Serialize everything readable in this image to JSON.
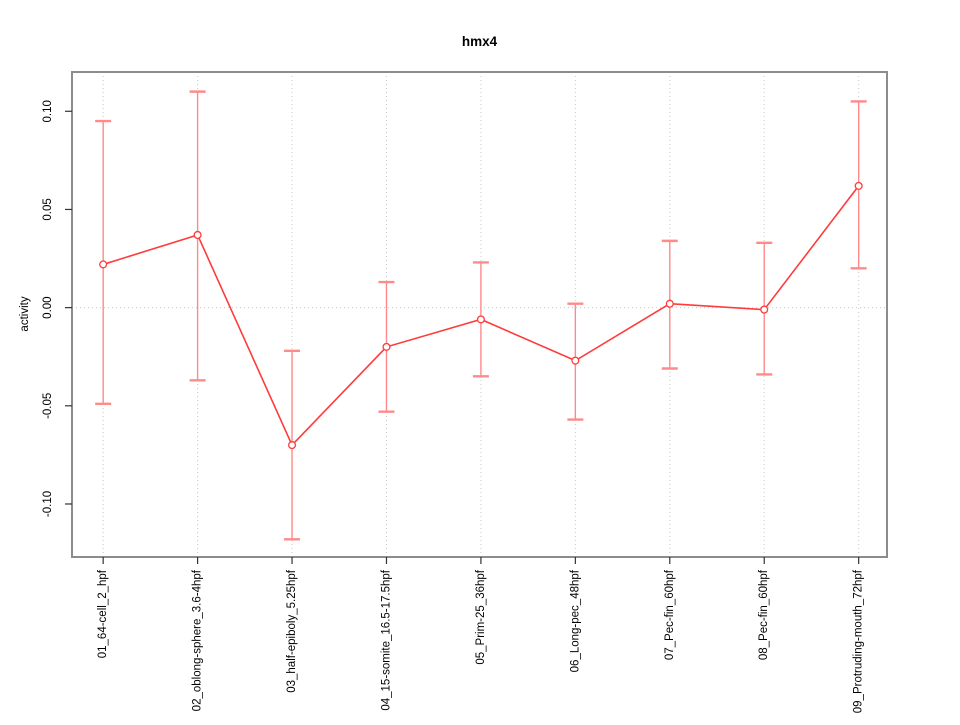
{
  "chart_data": {
    "type": "line",
    "title": "hmx4",
    "xlabel": "",
    "ylabel": "activity",
    "categories": [
      "01_64-cell_2_hpf",
      "02_oblong-sphere_3.6-4hpf",
      "03_half-epiboly_5.25hpf",
      "04_15-somite_16.5-17.5hpf",
      "05_Prim-25_36hpf",
      "06_Long-pec_48hpf",
      "07_Pec-fin_60hpf",
      "08_Pec-fin_60hpf",
      "09_Protruding-mouth_72hpf"
    ],
    "x": [
      1,
      2,
      3,
      4,
      5,
      6,
      7,
      8,
      9
    ],
    "values": [
      0.022,
      0.037,
      -0.07,
      -0.02,
      -0.006,
      -0.027,
      0.002,
      -0.001,
      0.062
    ],
    "error_low": [
      -0.049,
      -0.037,
      -0.118,
      -0.053,
      -0.035,
      -0.057,
      -0.031,
      -0.034,
      0.02
    ],
    "error_high": [
      0.095,
      0.11,
      -0.022,
      0.013,
      0.023,
      0.002,
      0.034,
      0.033,
      0.105
    ],
    "yticks": [
      -0.1,
      -0.05,
      0.0,
      0.05,
      0.1
    ],
    "ylim": [
      -0.127,
      0.12
    ],
    "xlim": [
      0.67,
      9.3
    ],
    "grid": "vertical dotted line at each category; horizontal dotted line at y=0",
    "legend": "none",
    "colors": {
      "line": "#ff3b3b",
      "point": "#ff3b3b",
      "error": "#ff8a8a",
      "grid": "#c9c9c9",
      "box": "#8c8c8c",
      "tick": "#333333",
      "text": "#000000",
      "background": "#ffffff"
    }
  }
}
